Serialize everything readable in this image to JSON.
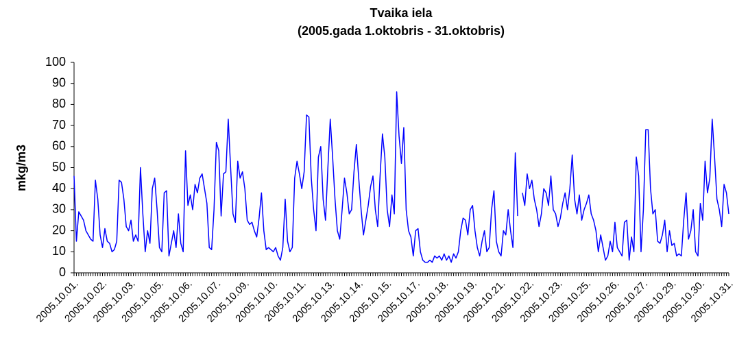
{
  "chart_data": {
    "type": "line",
    "title": "Tvaika iela",
    "subtitle": "(2005.gada 1.oktobris - 31.oktobris)",
    "y_label": "mkg/m3",
    "ylim": [
      0,
      100
    ],
    "yticks": [
      0,
      10,
      20,
      30,
      40,
      50,
      60,
      70,
      80,
      90,
      100
    ],
    "grid": false,
    "categories": [
      "2005.10.01.",
      null,
      null,
      null,
      null,
      null,
      null,
      null,
      null,
      null,
      null,
      null,
      "2005.10.02.",
      null,
      null,
      null,
      null,
      null,
      null,
      null,
      null,
      null,
      null,
      null,
      "2005.10.03.",
      null,
      null,
      null,
      null,
      null,
      null,
      null,
      null,
      null,
      null,
      null,
      "2005.10.05.",
      null,
      null,
      null,
      null,
      null,
      null,
      null,
      null,
      null,
      null,
      null,
      "2005.10.06.",
      null,
      null,
      null,
      null,
      null,
      null,
      null,
      null,
      null,
      null,
      null,
      "2005.10.07.",
      null,
      null,
      null,
      null,
      null,
      null,
      null,
      null,
      null,
      null,
      null,
      "2005.10.09.",
      null,
      null,
      null,
      null,
      null,
      null,
      null,
      null,
      null,
      null,
      null,
      "2005.10.10.",
      null,
      null,
      null,
      null,
      null,
      null,
      null,
      null,
      null,
      null,
      null,
      "2005.10.11.",
      null,
      null,
      null,
      null,
      null,
      null,
      null,
      null,
      null,
      null,
      null,
      "2005.10.13.",
      null,
      null,
      null,
      null,
      null,
      null,
      null,
      null,
      null,
      null,
      null,
      "2005.10.14.",
      null,
      null,
      null,
      null,
      null,
      null,
      null,
      null,
      null,
      null,
      null,
      "2005.10.15.",
      null,
      null,
      null,
      null,
      null,
      null,
      null,
      null,
      null,
      null,
      null,
      "2005.10.17.",
      null,
      null,
      null,
      null,
      null,
      null,
      null,
      null,
      null,
      null,
      null,
      "2005.10.18.",
      null,
      null,
      null,
      null,
      null,
      null,
      null,
      null,
      null,
      null,
      null,
      "2005.10.19.",
      null,
      null,
      null,
      null,
      null,
      null,
      null,
      null,
      null,
      null,
      null,
      "2005.10.21.",
      null,
      null,
      null,
      null,
      null,
      null,
      null,
      null,
      null,
      null,
      null,
      "2005.10.22.",
      null,
      null,
      null,
      null,
      null,
      null,
      null,
      null,
      null,
      null,
      null,
      "2005.10.23.",
      null,
      null,
      null,
      null,
      null,
      null,
      null,
      null,
      null,
      null,
      null,
      "2005.10.25.",
      null,
      null,
      null,
      null,
      null,
      null,
      null,
      null,
      null,
      null,
      null,
      "2005.10.26.",
      null,
      null,
      null,
      null,
      null,
      null,
      null,
      null,
      null,
      null,
      null,
      "2005.10.27.",
      null,
      null,
      null,
      null,
      null,
      null,
      null,
      null,
      null,
      null,
      null,
      "2005.10.29.",
      null,
      null,
      null,
      null,
      null,
      null,
      null,
      null,
      null,
      null,
      null,
      "2005.10.30.",
      null,
      null,
      null,
      null,
      null,
      null,
      null,
      null,
      null,
      null,
      null,
      "2005.10.31."
    ],
    "series": [
      {
        "name": "Tvaika iela",
        "color": "#0000ff",
        "values": [
          46,
          15,
          29,
          27,
          25,
          20,
          18,
          16,
          15,
          44,
          35,
          18,
          12,
          21,
          15,
          14,
          10,
          11,
          15,
          44,
          43,
          35,
          22,
          20,
          25,
          15,
          18,
          15,
          50,
          28,
          10,
          20,
          14,
          40,
          45,
          30,
          12,
          10,
          38,
          39,
          8,
          14,
          20,
          12,
          28,
          14,
          10,
          58,
          32,
          37,
          30,
          42,
          38,
          45,
          47,
          40,
          33,
          12,
          11,
          30,
          62,
          58,
          27,
          47,
          48,
          73,
          50,
          28,
          24,
          53,
          45,
          48,
          40,
          25,
          23,
          24,
          20,
          17,
          26,
          38,
          20,
          11,
          12,
          11,
          10,
          12,
          8,
          6,
          12,
          35,
          15,
          10,
          12,
          45,
          53,
          47,
          40,
          48,
          75,
          74,
          45,
          30,
          20,
          55,
          60,
          35,
          25,
          50,
          73,
          55,
          35,
          20,
          16,
          30,
          45,
          38,
          28,
          30,
          48,
          61,
          45,
          30,
          18,
          25,
          32,
          41,
          46,
          30,
          22,
          46,
          66,
          55,
          30,
          22,
          37,
          28,
          86,
          65,
          52,
          69,
          30,
          20,
          17,
          8,
          20,
          21,
          10,
          6,
          5,
          5,
          6,
          5,
          8,
          7,
          8,
          6,
          9,
          6,
          8,
          5,
          9,
          7,
          10,
          20,
          26,
          25,
          18,
          30,
          32,
          20,
          12,
          8,
          15,
          20,
          10,
          12,
          30,
          39,
          15,
          10,
          8,
          20,
          18,
          30,
          20,
          12,
          57,
          27,
          null,
          38,
          32,
          47,
          40,
          44,
          35,
          30,
          22,
          28,
          40,
          38,
          32,
          46,
          30,
          28,
          22,
          26,
          33,
          38,
          30,
          40,
          56,
          35,
          28,
          37,
          25,
          30,
          33,
          37,
          28,
          25,
          20,
          10,
          18,
          12,
          6,
          8,
          15,
          10,
          24,
          12,
          10,
          8,
          24,
          25,
          6,
          17,
          10,
          55,
          46,
          10,
          30,
          68,
          68,
          40,
          28,
          30,
          15,
          14,
          18,
          25,
          10,
          20,
          13,
          14,
          8,
          9,
          8,
          25,
          38,
          16,
          20,
          30,
          10,
          8,
          33,
          25,
          53,
          38,
          45,
          73,
          55,
          35,
          30,
          22,
          42,
          38,
          28
        ]
      }
    ]
  }
}
